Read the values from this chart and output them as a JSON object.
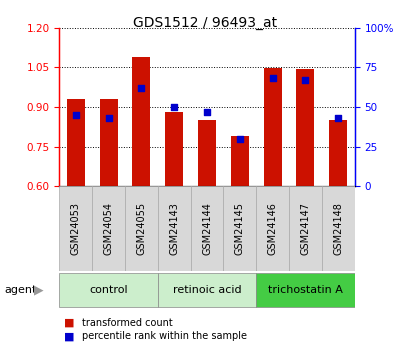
{
  "title": "GDS1512 / 96493_at",
  "samples": [
    "GSM24053",
    "GSM24054",
    "GSM24055",
    "GSM24143",
    "GSM24144",
    "GSM24145",
    "GSM24146",
    "GSM24147",
    "GSM24148"
  ],
  "transformed_count": [
    0.93,
    0.93,
    1.09,
    0.88,
    0.85,
    0.79,
    1.047,
    1.045,
    0.85
  ],
  "percentile_rank": [
    45,
    43,
    62,
    50,
    47,
    30,
    68,
    67,
    43
  ],
  "bar_color": "#cc1100",
  "dot_color": "#0000cc",
  "ylim_left": [
    0.6,
    1.2
  ],
  "ylim_right": [
    0,
    100
  ],
  "yticks_left": [
    0.6,
    0.75,
    0.9,
    1.05,
    1.2
  ],
  "yticks_right": [
    0,
    25,
    50,
    75,
    100
  ],
  "ytick_labels_right": [
    "0",
    "25",
    "50",
    "75",
    "100%"
  ],
  "groups": [
    {
      "label": "control",
      "indices": [
        0,
        1,
        2
      ],
      "color": "#cceecc"
    },
    {
      "label": "retinoic acid",
      "indices": [
        3,
        4,
        5
      ],
      "color": "#cceecc"
    },
    {
      "label": "trichostatin A",
      "indices": [
        6,
        7,
        8
      ],
      "color": "#44cc44"
    }
  ],
  "legend": [
    {
      "label": "transformed count",
      "color": "#cc1100"
    },
    {
      "label": "percentile rank within the sample",
      "color": "#0000cc"
    }
  ],
  "bar_width": 0.55,
  "baseline": 0.6
}
